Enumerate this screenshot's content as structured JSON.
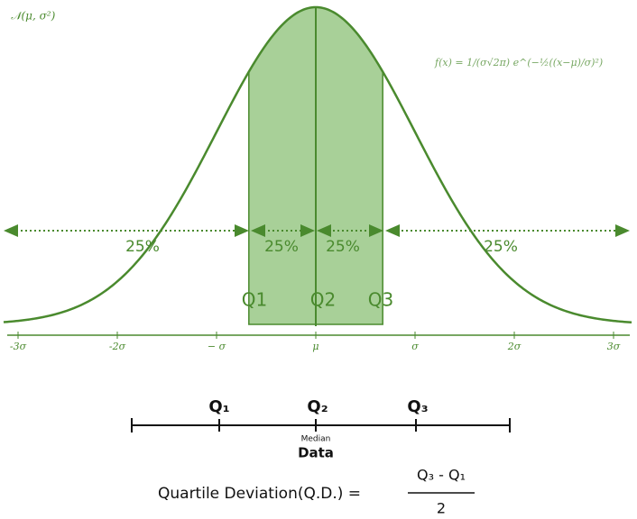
{
  "curve": {
    "label": "𝒩(μ, σ²)",
    "formula": "f(x) = 1/(σ√2π) e^(−½((x−μ)/σ)²)"
  },
  "shares": [
    "25%",
    "25%",
    "25%",
    "25%"
  ],
  "quartile_labels": [
    "Q1",
    "Q2",
    "Q3"
  ],
  "axis_labels": [
    "-3σ",
    "-2σ",
    "− σ",
    "μ",
    "σ",
    "2σ",
    "3σ"
  ],
  "data_line": {
    "quartiles": [
      "Q₁",
      "Q₂",
      "Q₃"
    ],
    "median": "Median",
    "label": "Data"
  },
  "formula": {
    "text": "Quartile Deviation(Q.D.) =",
    "numerator": "Q₃ - Q₁",
    "denominator": "2"
  }
}
